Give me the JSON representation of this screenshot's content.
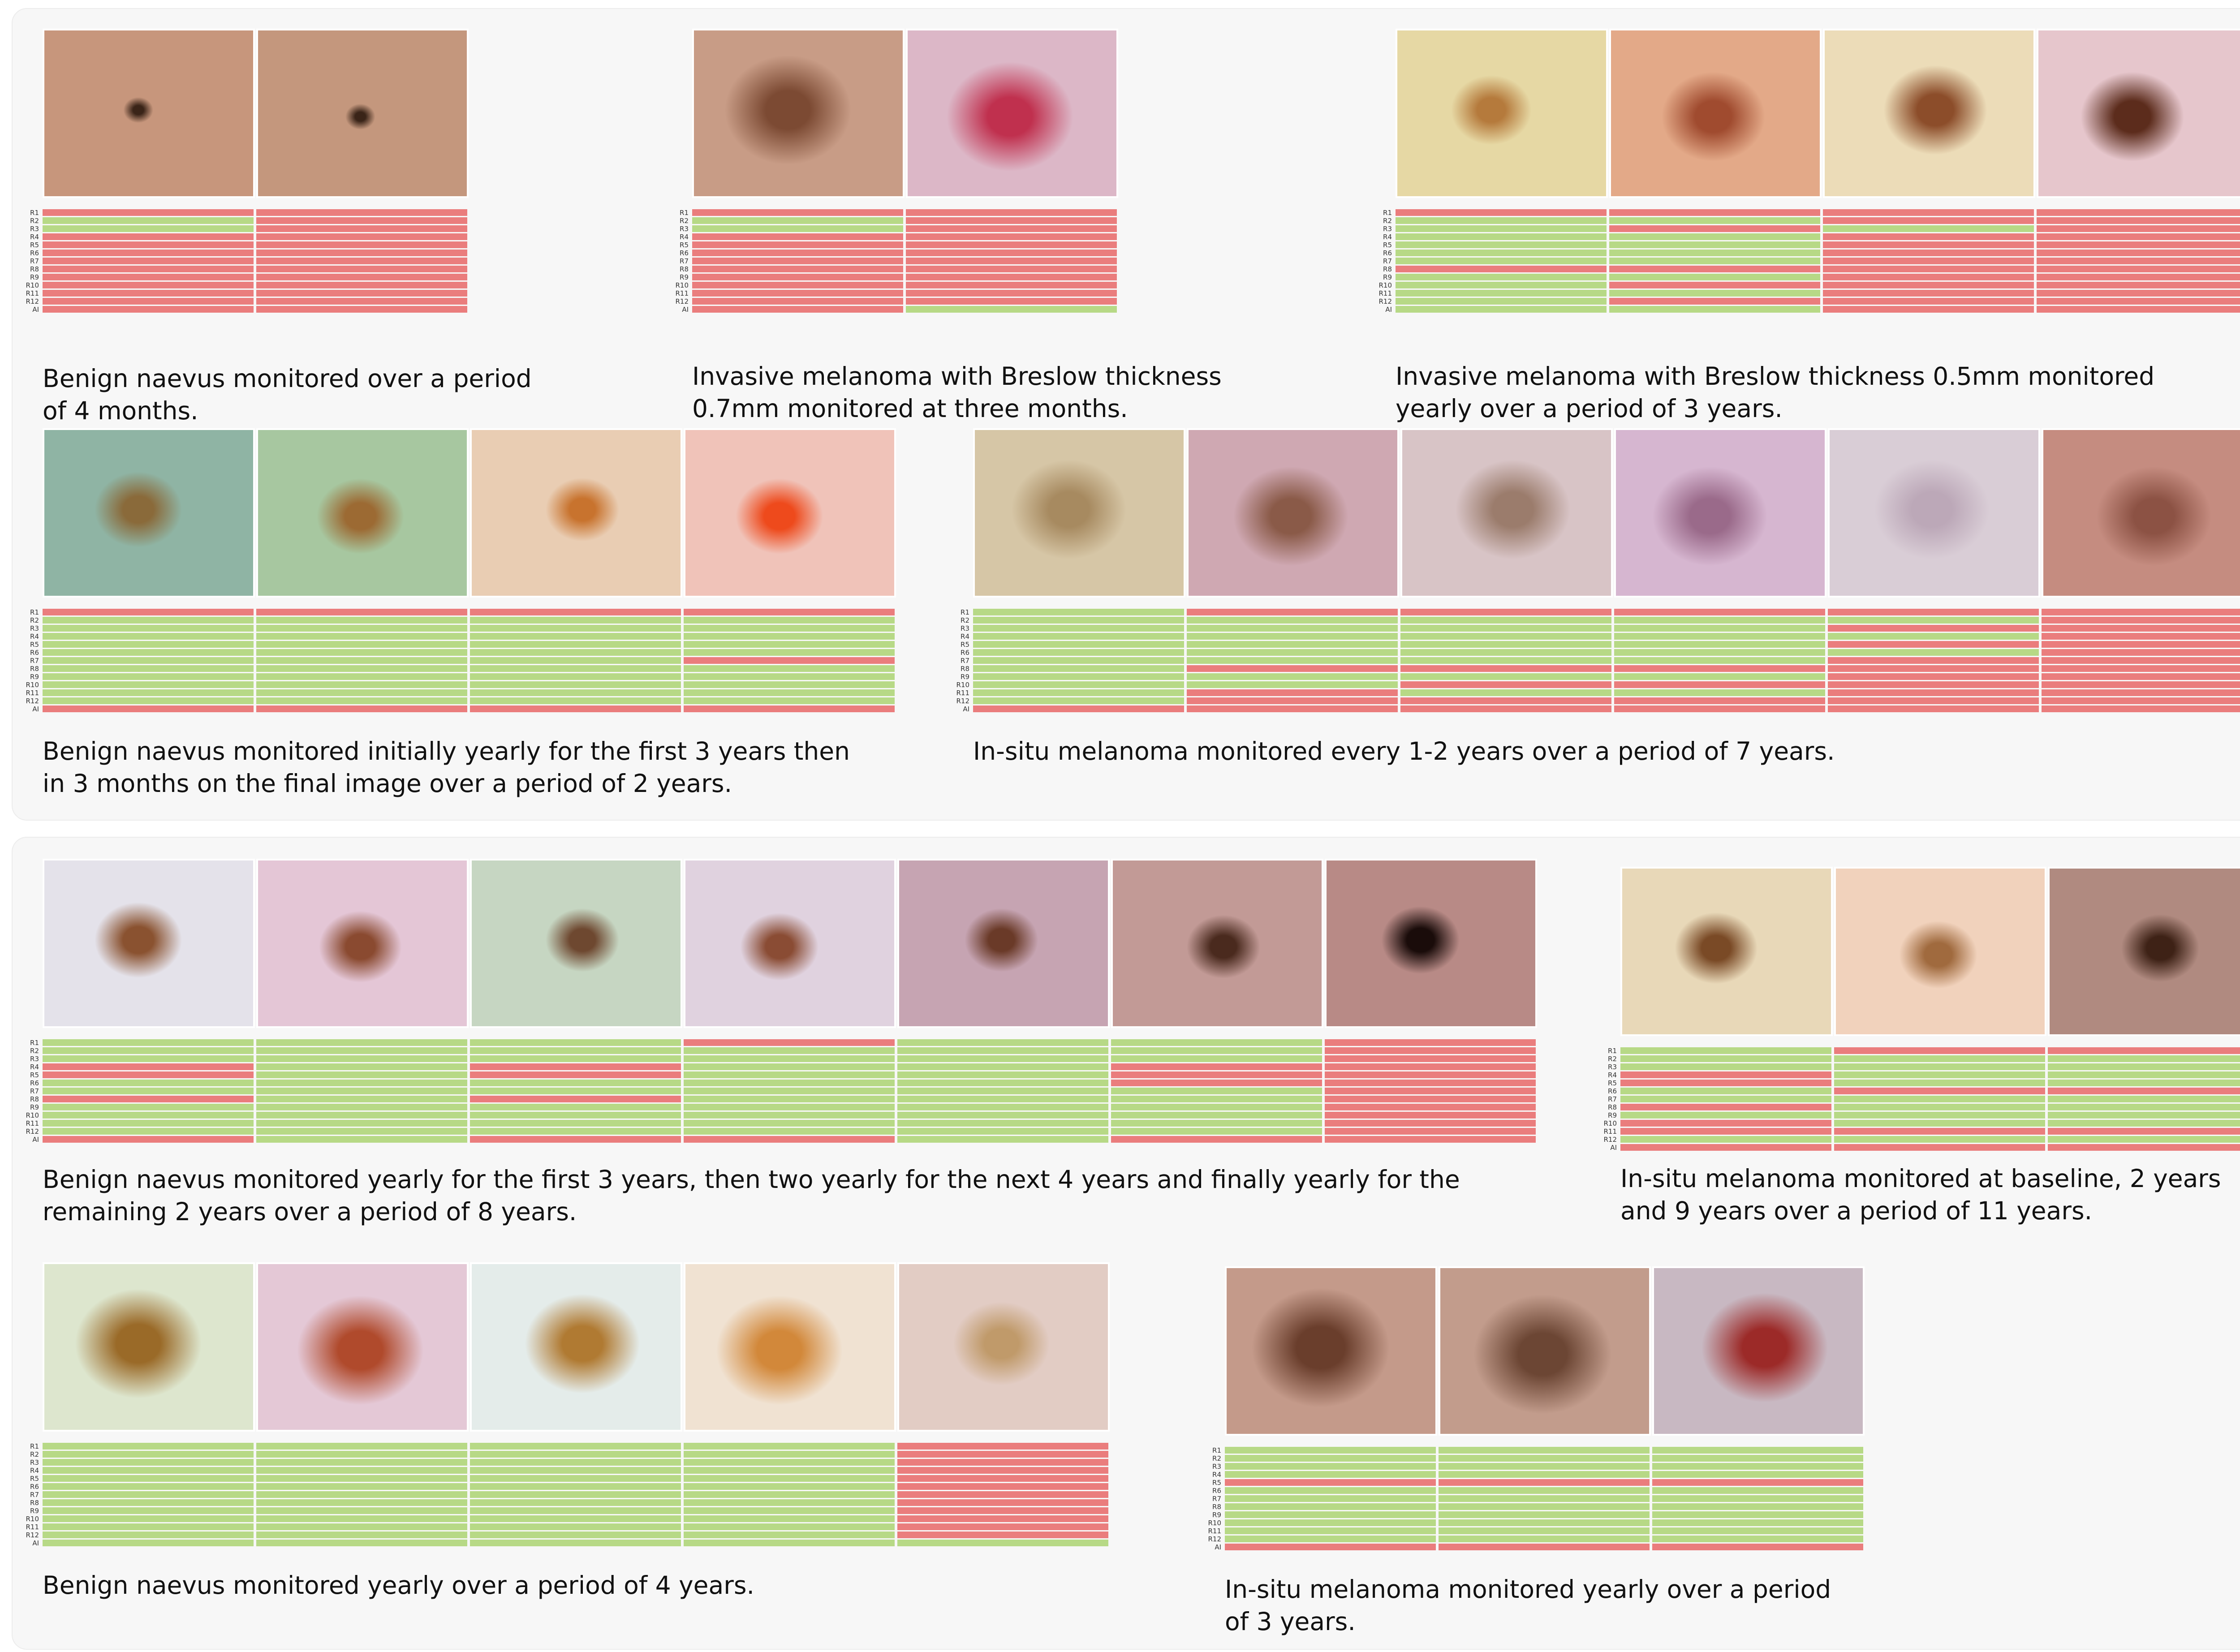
{
  "row_labels": [
    "R1",
    "R2",
    "R3",
    "R4",
    "R5",
    "R6",
    "R7",
    "R8",
    "R9",
    "R10",
    "R11",
    "R12",
    "AI"
  ],
  "colors": {
    "agree": "#b7d986",
    "disagree": "#ea7d7d",
    "panel": "#f7f7f7"
  },
  "cases": [
    {
      "id": "a",
      "caption_lines": [
        "Benign naevus monitored over a period",
        "of 4 months."
      ],
      "images": [
        {
          "bg": "#c7967c",
          "spot": "#3a2418",
          "spot_size": 0.13
        },
        {
          "bg": "#c4977d",
          "spot": "#3a2418",
          "spot_size": 0.13
        }
      ],
      "grid": [
        [
          "r",
          "g",
          "g",
          "r",
          "r",
          "r",
          "r",
          "r",
          "r",
          "r",
          "r",
          "r",
          "r"
        ],
        [
          "r",
          "r",
          "r",
          "r",
          "r",
          "r",
          "r",
          "r",
          "r",
          "r",
          "r",
          "r",
          "r"
        ]
      ]
    },
    {
      "id": "b",
      "caption_lines": [
        "Invasive melanoma with Breslow thickness",
        "0.7mm monitored at three months."
      ],
      "images": [
        {
          "bg": "#c89c86",
          "spot": "#7c4a33",
          "spot_size": 0.55
        },
        {
          "bg": "#dcb7c7",
          "spot": "#c0304e",
          "spot_size": 0.55
        }
      ],
      "grid": [
        [
          "r",
          "g",
          "g",
          "r",
          "r",
          "r",
          "r",
          "r",
          "r",
          "r",
          "r",
          "r",
          "r"
        ],
        [
          "r",
          "r",
          "r",
          "r",
          "r",
          "r",
          "r",
          "r",
          "r",
          "r",
          "r",
          "r",
          "g"
        ]
      ]
    },
    {
      "id": "c",
      "caption_lines": [
        "Invasive melanoma with Breslow thickness 0.5mm monitored",
        "yearly over a period of 3 years."
      ],
      "images": [
        {
          "bg": "#e6d8a4",
          "spot": "#b57a3c",
          "spot_size": 0.35
        },
        {
          "bg": "#e3a988",
          "spot": "#a04b2f",
          "spot_size": 0.45
        },
        {
          "bg": "#ecdcb8",
          "spot": "#8c4d2a",
          "spot_size": 0.45
        },
        {
          "bg": "#e6c6cc",
          "spot": "#5c2c1c",
          "spot_size": 0.45
        }
      ],
      "grid": [
        [
          "r",
          "g",
          "g",
          "g",
          "g",
          "g",
          "g",
          "r",
          "g",
          "g",
          "g",
          "g",
          "g"
        ],
        [
          "r",
          "g",
          "r",
          "g",
          "g",
          "g",
          "g",
          "r",
          "g",
          "r",
          "g",
          "r",
          "g"
        ],
        [
          "r",
          "r",
          "g",
          "r",
          "r",
          "r",
          "r",
          "r",
          "r",
          "r",
          "r",
          "r",
          "r"
        ],
        [
          "r",
          "r",
          "r",
          "r",
          "r",
          "r",
          "r",
          "r",
          "r",
          "r",
          "r",
          "r",
          "r"
        ]
      ]
    },
    {
      "id": "d",
      "caption_lines": [
        "Benign naevus monitored initially yearly for the first 3 years then",
        "in 3 months on the final image over a period of 2 years."
      ],
      "images": [
        {
          "bg": "#8fb4a4",
          "spot": "#8a6a3a",
          "spot_size": 0.38
        },
        {
          "bg": "#a7c7a0",
          "spot": "#9c6a33",
          "spot_size": 0.38
        },
        {
          "bg": "#e9cdb3",
          "spot": "#c8732e",
          "spot_size": 0.32
        },
        {
          "bg": "#f0c3b9",
          "spot": "#ee4a1c",
          "spot_size": 0.38
        }
      ],
      "grid": [
        [
          "r",
          "g",
          "g",
          "g",
          "g",
          "g",
          "g",
          "g",
          "g",
          "g",
          "g",
          "g",
          "r"
        ],
        [
          "r",
          "g",
          "g",
          "g",
          "g",
          "g",
          "g",
          "g",
          "g",
          "g",
          "g",
          "g",
          "r"
        ],
        [
          "r",
          "g",
          "g",
          "g",
          "g",
          "g",
          "g",
          "g",
          "g",
          "g",
          "g",
          "g",
          "r"
        ],
        [
          "r",
          "g",
          "g",
          "g",
          "g",
          "g",
          "r",
          "g",
          "g",
          "g",
          "g",
          "g",
          "r"
        ]
      ]
    },
    {
      "id": "e",
      "caption_lines": [
        "In-situ melanoma monitored every 1-2 years over a period of 7 years."
      ],
      "images": [
        {
          "bg": "#d6c6a6",
          "spot": "#a78a60",
          "spot_size": 0.5
        },
        {
          "bg": "#cfa8b2",
          "spot": "#8a5a48",
          "spot_size": 0.5
        },
        {
          "bg": "#d8c4c6",
          "spot": "#9b7c6c",
          "spot_size": 0.5
        },
        {
          "bg": "#d6b6d0",
          "spot": "#9a6a8a",
          "spot_size": 0.5
        },
        {
          "bg": "#d9cdd6",
          "spot": "#bca8b8",
          "spot_size": 0.5
        },
        {
          "bg": "#c58c80",
          "spot": "#8c5244",
          "spot_size": 0.5
        }
      ],
      "grid": [
        [
          "g",
          "g",
          "g",
          "g",
          "g",
          "g",
          "g",
          "g",
          "g",
          "g",
          "g",
          "g",
          "r"
        ],
        [
          "r",
          "g",
          "g",
          "g",
          "g",
          "g",
          "g",
          "r",
          "g",
          "g",
          "r",
          "r",
          "r"
        ],
        [
          "r",
          "g",
          "g",
          "g",
          "g",
          "g",
          "g",
          "r",
          "g",
          "r",
          "g",
          "r",
          "r"
        ],
        [
          "r",
          "g",
          "g",
          "g",
          "g",
          "g",
          "g",
          "r",
          "g",
          "r",
          "g",
          "r",
          "r"
        ],
        [
          "r",
          "g",
          "r",
          "g",
          "r",
          "g",
          "r",
          "r",
          "r",
          "r",
          "r",
          "r",
          "r"
        ],
        [
          "r",
          "r",
          "r",
          "r",
          "r",
          "r",
          "r",
          "r",
          "r",
          "r",
          "r",
          "r",
          "r"
        ]
      ]
    },
    {
      "id": "f",
      "caption_lines": [
        "Benign naevus monitored yearly for the first 3 years, then two yearly for the next 4 years and finally yearly for the",
        "remaining 2 years over a period of 8 years."
      ],
      "images": [
        {
          "bg": "#e4e2ea",
          "spot": "#8a5230",
          "spot_size": 0.38
        },
        {
          "bg": "#e4c6d6",
          "spot": "#8a4a30",
          "spot_size": 0.36
        },
        {
          "bg": "#c6d6c2",
          "spot": "#6e4830",
          "spot_size": 0.32
        },
        {
          "bg": "#e0d2df",
          "spot": "#8a4c34",
          "spot_size": 0.34
        },
        {
          "bg": "#c6a4b2",
          "spot": "#6a3a28",
          "spot_size": 0.32
        },
        {
          "bg": "#c29a96",
          "spot": "#4a2a1e",
          "spot_size": 0.32
        },
        {
          "bg": "#b88a86",
          "spot": "#1a0c0a",
          "spot_size": 0.34
        }
      ],
      "grid": [
        [
          "g",
          "g",
          "g",
          "r",
          "r",
          "g",
          "g",
          "r",
          "g",
          "g",
          "g",
          "g",
          "r"
        ],
        [
          "g",
          "g",
          "g",
          "g",
          "g",
          "g",
          "g",
          "g",
          "g",
          "g",
          "g",
          "g",
          "g"
        ],
        [
          "g",
          "g",
          "g",
          "r",
          "r",
          "g",
          "g",
          "r",
          "g",
          "g",
          "g",
          "g",
          "r"
        ],
        [
          "r",
          "g",
          "g",
          "g",
          "g",
          "g",
          "g",
          "g",
          "g",
          "g",
          "g",
          "g",
          "r"
        ],
        [
          "g",
          "g",
          "g",
          "g",
          "g",
          "g",
          "g",
          "g",
          "g",
          "g",
          "g",
          "g",
          "g"
        ],
        [
          "g",
          "g",
          "g",
          "r",
          "r",
          "r",
          "g",
          "g",
          "g",
          "g",
          "g",
          "g",
          "r"
        ],
        [
          "r",
          "r",
          "r",
          "r",
          "r",
          "r",
          "r",
          "r",
          "r",
          "r",
          "r",
          "r",
          "r"
        ]
      ]
    },
    {
      "id": "g",
      "caption_lines": [
        "In-situ melanoma monitored at baseline, 2 years",
        "and 9 years over a period of 11 years."
      ],
      "images": [
        {
          "bg": "#e8d8b8",
          "spot": "#7a4a26",
          "spot_size": 0.36
        },
        {
          "bg": "#f1d2bc",
          "spot": "#a06a3e",
          "spot_size": 0.34
        },
        {
          "bg": "#b08a80",
          "spot": "#3e2216",
          "spot_size": 0.34
        }
      ],
      "grid": [
        [
          "g",
          "g",
          "g",
          "r",
          "r",
          "g",
          "g",
          "r",
          "g",
          "r",
          "r",
          "g",
          "r"
        ],
        [
          "r",
          "g",
          "g",
          "g",
          "g",
          "r",
          "g",
          "g",
          "g",
          "g",
          "r",
          "g",
          "r"
        ],
        [
          "r",
          "g",
          "g",
          "g",
          "g",
          "r",
          "g",
          "g",
          "g",
          "g",
          "r",
          "g",
          "r"
        ]
      ]
    },
    {
      "id": "h",
      "caption_lines": [
        "Benign naevus monitored yearly over a period of 4 years."
      ],
      "images": [
        {
          "bg": "#dde6ce",
          "spot": "#9a6a28",
          "spot_size": 0.55
        },
        {
          "bg": "#e4c8d6",
          "spot": "#b04a2c",
          "spot_size": 0.55
        },
        {
          "bg": "#e4ecea",
          "spot": "#b07a32",
          "spot_size": 0.5
        },
        {
          "bg": "#f0e2d2",
          "spot": "#d2883a",
          "spot_size": 0.55
        },
        {
          "bg": "#e2ccc4",
          "spot": "#c09a6a",
          "spot_size": 0.42
        }
      ],
      "grid": [
        [
          "g",
          "g",
          "g",
          "g",
          "g",
          "g",
          "g",
          "g",
          "g",
          "g",
          "g",
          "g",
          "g"
        ],
        [
          "g",
          "g",
          "g",
          "g",
          "g",
          "g",
          "g",
          "g",
          "g",
          "g",
          "g",
          "g",
          "g"
        ],
        [
          "g",
          "g",
          "g",
          "g",
          "g",
          "g",
          "g",
          "g",
          "g",
          "g",
          "g",
          "g",
          "g"
        ],
        [
          "g",
          "g",
          "g",
          "g",
          "g",
          "g",
          "g",
          "g",
          "g",
          "g",
          "g",
          "g",
          "g"
        ],
        [
          "r",
          "r",
          "r",
          "r",
          "r",
          "r",
          "r",
          "r",
          "r",
          "r",
          "r",
          "r",
          "g"
        ]
      ]
    },
    {
      "id": "i",
      "caption_lines": [
        "In-situ melanoma monitored yearly over a period",
        "of 3 years."
      ],
      "images": [
        {
          "bg": "#c49a8a",
          "spot": "#6a3e2c",
          "spot_size": 0.6
        },
        {
          "bg": "#c29c8c",
          "spot": "#6c4634",
          "spot_size": 0.6
        },
        {
          "bg": "#c8b8c2",
          "spot": "#9c2a28",
          "spot_size": 0.55
        }
      ],
      "grid": [
        [
          "g",
          "g",
          "g",
          "g",
          "r",
          "g",
          "g",
          "g",
          "g",
          "g",
          "g",
          "g",
          "r"
        ],
        [
          "g",
          "g",
          "g",
          "g",
          "r",
          "g",
          "g",
          "g",
          "g",
          "g",
          "g",
          "g",
          "r"
        ],
        [
          "g",
          "g",
          "g",
          "g",
          "r",
          "g",
          "g",
          "g",
          "g",
          "g",
          "g",
          "g",
          "r"
        ]
      ]
    }
  ]
}
